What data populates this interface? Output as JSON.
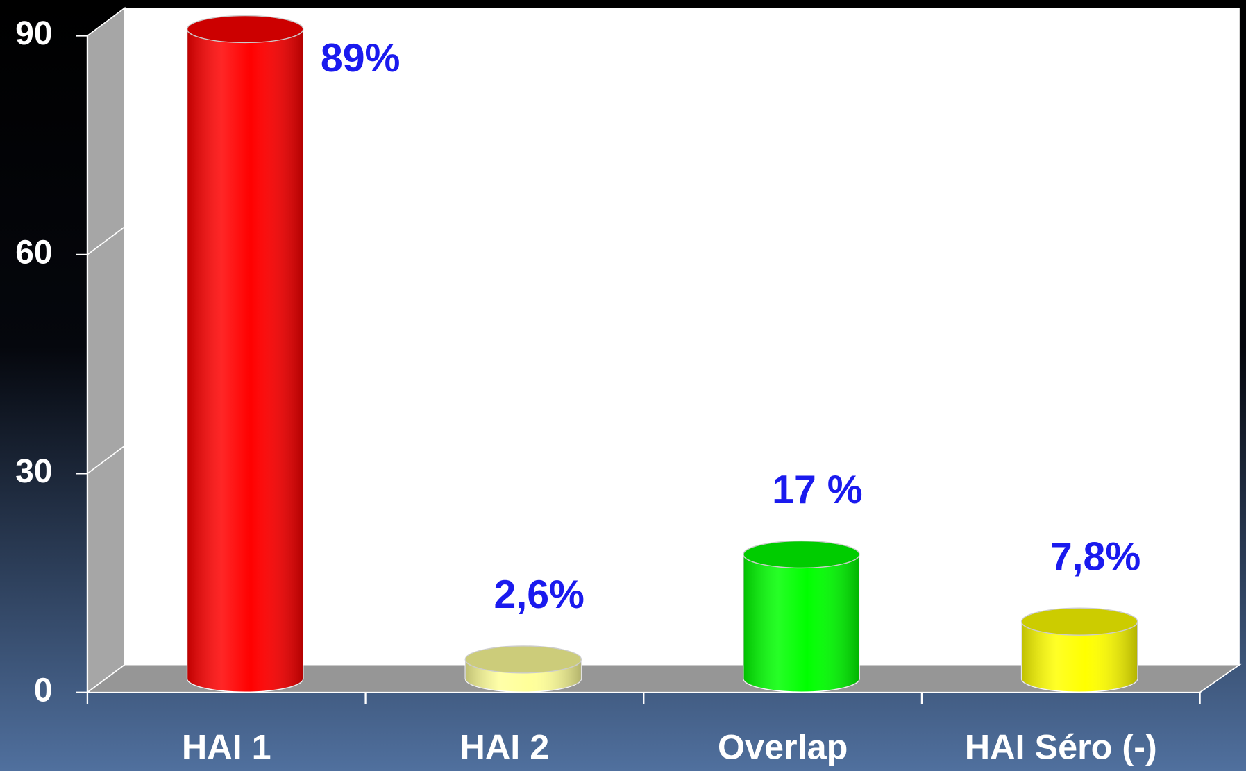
{
  "chart_data": {
    "type": "bar",
    "categories": [
      "HAI 1",
      "HAI 2",
      "Overlap",
      "HAI Séro (-)"
    ],
    "values": [
      89,
      2.6,
      17,
      7.8
    ],
    "value_labels": [
      "89%",
      "2,6%",
      "17 %",
      "7,8%"
    ],
    "colors": [
      "#ff0000",
      "#ffff99",
      "#00ff00",
      "#ffff00"
    ],
    "ylim": [
      0,
      90
    ],
    "yticks": [
      0,
      30,
      60,
      90
    ],
    "grid": true
  }
}
